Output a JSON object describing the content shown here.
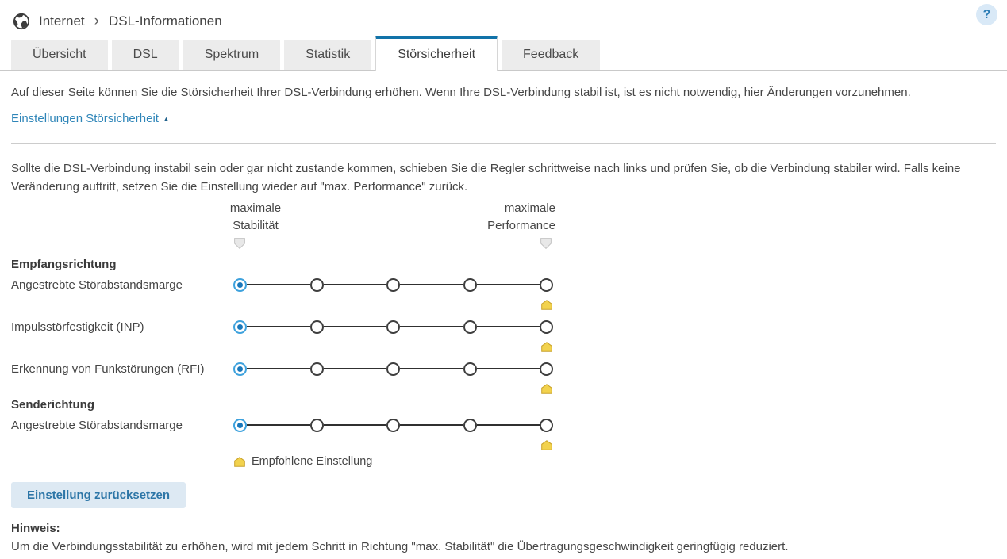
{
  "breadcrumb": {
    "section": "Internet",
    "separator": "›",
    "page": "DSL-Informationen",
    "help_label": "?"
  },
  "tabs": [
    {
      "label": "Übersicht",
      "active": false
    },
    {
      "label": "DSL",
      "active": false
    },
    {
      "label": "Spektrum",
      "active": false
    },
    {
      "label": "Statistik",
      "active": false
    },
    {
      "label": "Störsicherheit",
      "active": true
    },
    {
      "label": "Feedback",
      "active": false
    }
  ],
  "page": {
    "intro": "Auf dieser Seite können Sie die Störsicherheit Ihrer DSL-Verbindung erhöhen. Wenn Ihre DSL-Verbindung stabil ist, ist es nicht notwendig, hier Änderungen vorzunehmen.",
    "toggle_label": "Einstellungen Störsicherheit",
    "toggle_arrow": "▲",
    "instructions": "Sollte die DSL-Verbindung instabil sein oder gar nicht zustande kommen, schieben Sie die Regler schrittweise nach links und prüfen Sie, ob die Verbindung stabiler wird. Falls keine Veränderung auftritt, setzen Sie die Einstellung wieder auf \"max. Performance\" zurück."
  },
  "matrix": {
    "headers": {
      "left": [
        "maximale",
        "Stabilität"
      ],
      "right": [
        "maximale",
        "Performance"
      ]
    },
    "positions_total": 5,
    "sections": [
      {
        "title": "Empfangsrichtung",
        "rows": [
          {
            "label": "Angestrebte Störabstandsmarge",
            "positions": 5,
            "selected": 0,
            "recommended": 4
          },
          {
            "label": "Impulsstörfestigkeit (INP)",
            "positions": 5,
            "selected": 0,
            "recommended": 4
          },
          {
            "label": "Erkennung von Funkstörungen (RFI)",
            "positions": 5,
            "selected": 0,
            "recommended": 4
          }
        ]
      },
      {
        "title": "Senderichtung",
        "rows": [
          {
            "label": "Angestrebte Störabstandsmarge",
            "positions": 5,
            "selected": 0,
            "recommended": 4
          }
        ]
      }
    ],
    "legend": "Empfohlene Einstellung"
  },
  "actions": {
    "reset_label": "Einstellung zurücksetzen"
  },
  "note": {
    "label": "Hinweis:",
    "text": "Um die Verbindungsstabilität zu erhöhen, wird mit jedem Schritt in Richtung \"max. Stabilität\" die Übertragungsgeschwindigkeit geringfügig reduziert."
  },
  "colors": {
    "accent_tab": "#1173a9",
    "link": "#2e85b8",
    "selected_radio": "#1a78bb",
    "recommended_marker": "#f2d24d",
    "button_bg": "#dde9f3",
    "button_text": "#2d76a7"
  }
}
